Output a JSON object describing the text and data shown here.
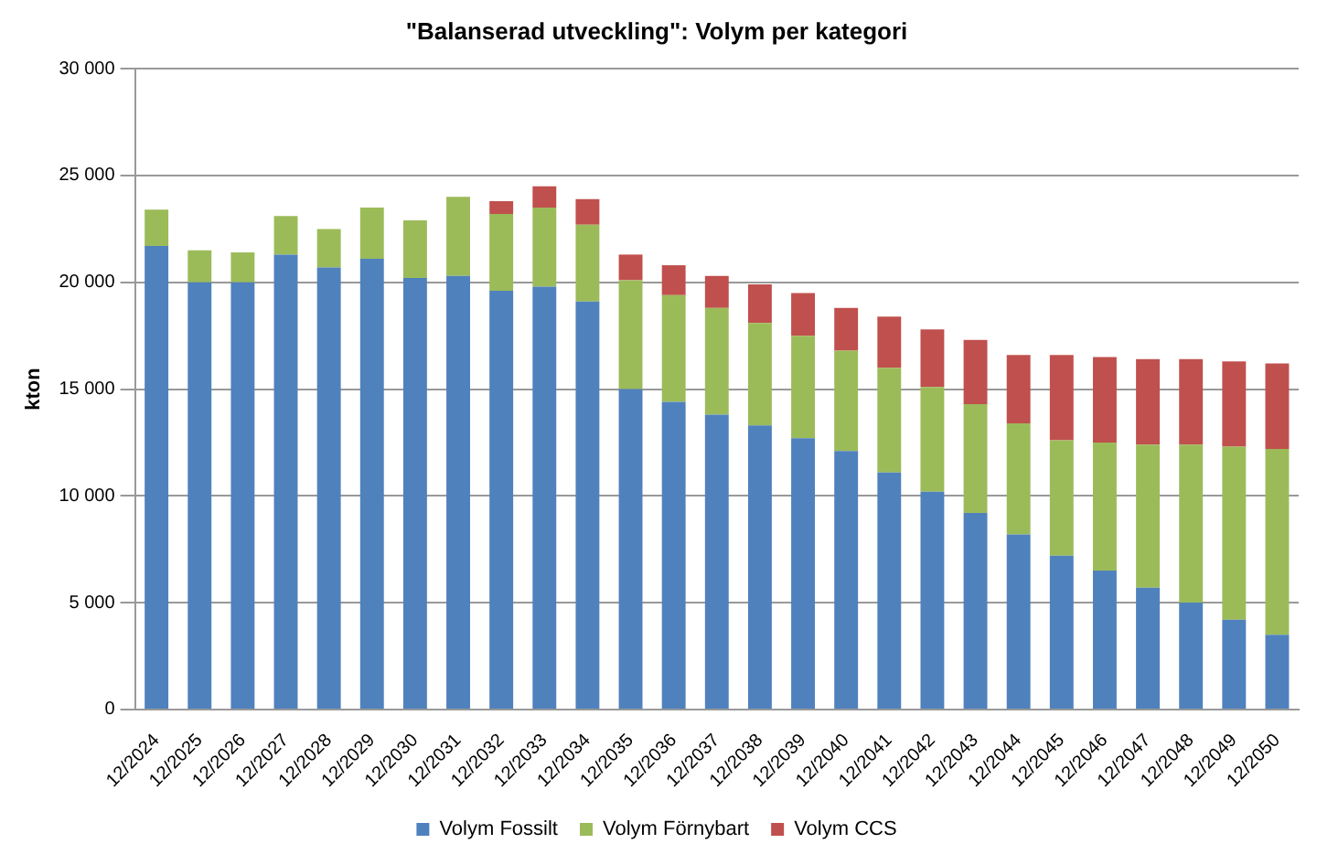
{
  "chart_data": {
    "type": "bar",
    "title": "\"Balanserad utveckling\": Volym per kategori",
    "ylabel": "kton",
    "stacked": true,
    "grid": "y",
    "legend": "bottom",
    "categories": [
      "12/2024",
      "12/2025",
      "12/2026",
      "12/2027",
      "12/2028",
      "12/2029",
      "12/2030",
      "12/2031",
      "12/2032",
      "12/2033",
      "12/2034",
      "12/2035",
      "12/2036",
      "12/2037",
      "12/2038",
      "12/2039",
      "12/2040",
      "12/2041",
      "12/2042",
      "12/2043",
      "12/2044",
      "12/2045",
      "12/2046",
      "12/2047",
      "12/2048",
      "12/2049",
      "12/2050"
    ],
    "ylim": [
      0,
      30000
    ],
    "yticks": [
      {
        "value": 0,
        "label": "0"
      },
      {
        "value": 5000,
        "label": "5 000"
      },
      {
        "value": 10000,
        "label": "10 000"
      },
      {
        "value": 15000,
        "label": "15 000"
      },
      {
        "value": 20000,
        "label": "20 000"
      },
      {
        "value": 25000,
        "label": "25 000"
      },
      {
        "value": 30000,
        "label": "30 000"
      }
    ],
    "series": [
      {
        "name": "Volym Fossilt",
        "color": "#4f81bd",
        "values": [
          21700,
          20000,
          20000,
          21300,
          20700,
          21100,
          20200,
          20300,
          19600,
          19800,
          19100,
          15000,
          14400,
          13800,
          13300,
          12700,
          12100,
          11100,
          10200,
          9200,
          8200,
          7200,
          6500,
          5700,
          5000,
          4200,
          3500
        ]
      },
      {
        "name": "Volym Förnybart",
        "color": "#9bbb59",
        "values": [
          1700,
          1500,
          1400,
          1800,
          1800,
          2400,
          2700,
          3700,
          3600,
          3700,
          3600,
          5100,
          5000,
          5000,
          4800,
          4800,
          4700,
          4900,
          4900,
          5100,
          5200,
          5400,
          6000,
          6700,
          7400,
          8100,
          8700
        ]
      },
      {
        "name": "Volym CCS",
        "color": "#c0504d",
        "values": [
          0,
          0,
          0,
          0,
          0,
          0,
          0,
          0,
          600,
          1000,
          1200,
          1200,
          1400,
          1500,
          1800,
          2000,
          2000,
          2400,
          2700,
          3000,
          3200,
          4000,
          4000,
          4000,
          4000,
          4000,
          4000
        ]
      }
    ]
  }
}
